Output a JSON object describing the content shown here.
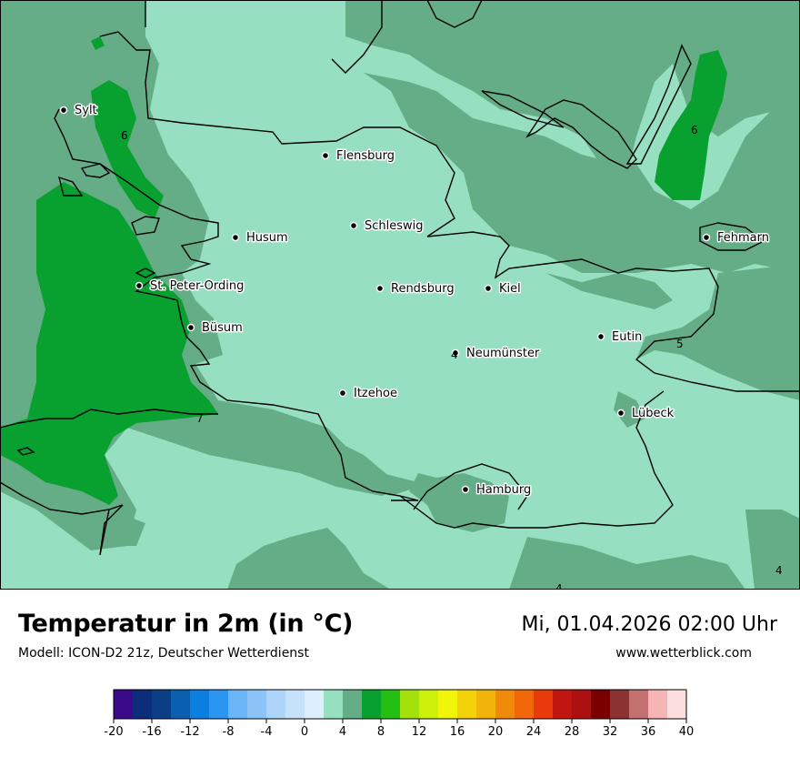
{
  "map": {
    "colors": {
      "t4_6": "#96dfc0",
      "t5_6": "#65ad86",
      "t6_8": "#08a02e",
      "border": "#000000"
    },
    "cities": [
      {
        "name": "Sylt"
      },
      {
        "name": "Flensburg"
      },
      {
        "name": "Schleswig"
      },
      {
        "name": "Husum"
      },
      {
        "name": "Fehmarn"
      },
      {
        "name": "St. Peter-Ording"
      },
      {
        "name": "Rendsburg"
      },
      {
        "name": "Kiel"
      },
      {
        "name": "Büsum"
      },
      {
        "name": "Eutin"
      },
      {
        "name": "Neumünster"
      },
      {
        "name": "Itzehoe"
      },
      {
        "name": "Lübeck"
      },
      {
        "name": "Hamburg"
      }
    ],
    "isoline_labels": [
      "6",
      "6",
      "5",
      "7",
      "4",
      "4",
      "4"
    ]
  },
  "footer": {
    "title": "Temperatur in 2m (in °C)",
    "model": "Modell: ICON-D2 21z, Deutscher Wetterdienst",
    "datetime": "Mi, 01.04.2026 02:00 Uhr",
    "website": "www.wetterblick.com"
  },
  "legend": {
    "ticks": [
      "-20",
      "-16",
      "-12",
      "-8",
      "-4",
      "0",
      "4",
      "8",
      "12",
      "16",
      "20",
      "24",
      "28",
      "32",
      "36",
      "40"
    ],
    "colors": [
      "#3a0a8a",
      "#0c2d7c",
      "#0a3f86",
      "#0a5fb0",
      "#0b7fe0",
      "#2a96f2",
      "#6ab4f7",
      "#8cc4f8",
      "#aed4fa",
      "#c6e2fb",
      "#ddeefe",
      "#96dfc0",
      "#65ad86",
      "#08a02e",
      "#24bf12",
      "#a4e00c",
      "#cdf00a",
      "#f0f50a",
      "#f4d20a",
      "#f2b40a",
      "#f08a0a",
      "#f0680a",
      "#e83a0a",
      "#c0160f",
      "#ac1010",
      "#7a0000",
      "#8c3232",
      "#c47070",
      "#f6b4b4",
      "#fcdede"
    ]
  }
}
